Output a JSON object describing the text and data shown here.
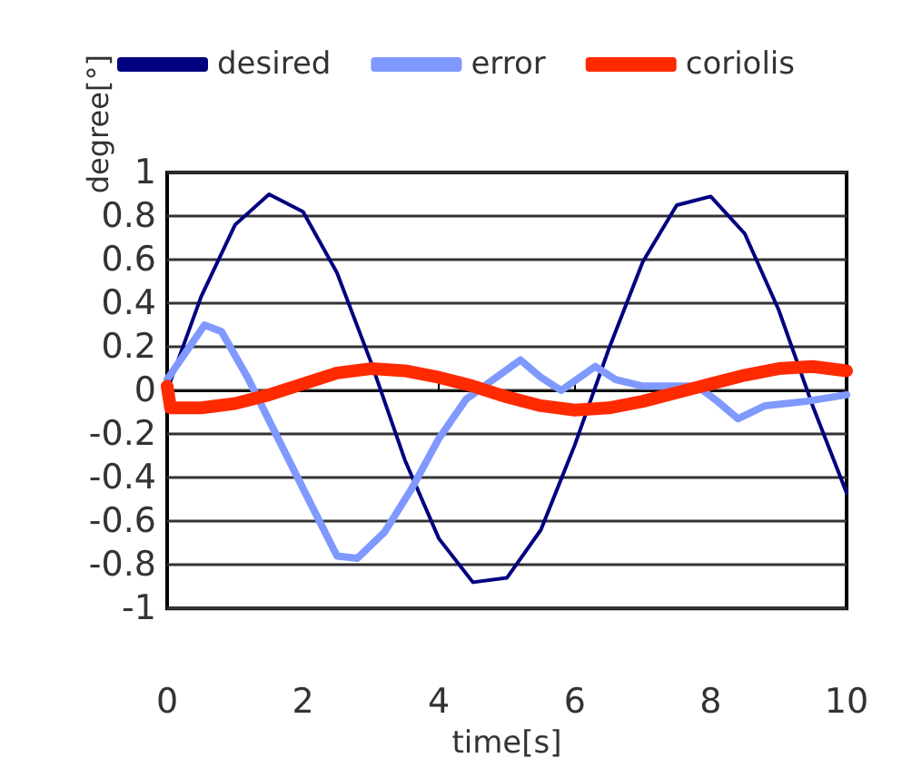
{
  "chart_data": {
    "type": "line",
    "xlabel": "time[s]",
    "ylabel": "degree[°]",
    "xlim": [
      0,
      10
    ],
    "xticks": [
      0,
      2,
      4,
      6,
      8,
      10
    ],
    "ylim": [
      -1,
      1
    ],
    "yticks": [
      -1,
      -0.8,
      -0.6,
      -0.4,
      -0.2,
      0,
      0.2,
      0.4,
      0.6,
      0.8,
      1
    ],
    "grid": "y",
    "legend": "top",
    "marker": "none",
    "line_style": "solid",
    "series": [
      {
        "name": "desired",
        "color": "#000080",
        "x": [
          0,
          0.5,
          1,
          1.5,
          2,
          2.5,
          3,
          3.5,
          4,
          4.5,
          5,
          5.5,
          6,
          6.5,
          7,
          7.5,
          8,
          8.5,
          9,
          9.5,
          10
        ],
        "values": [
          0,
          0.43,
          0.76,
          0.9,
          0.82,
          0.54,
          0.13,
          -0.32,
          -0.68,
          -0.88,
          -0.86,
          -0.64,
          -0.25,
          0.19,
          0.59,
          0.85,
          0.89,
          0.72,
          0.37,
          -0.07,
          -0.47
        ]
      },
      {
        "name": "error",
        "color": "#8099ff",
        "x": [
          0,
          0.55,
          0.8,
          1.2,
          1.6,
          2,
          2.5,
          2.8,
          3.2,
          3.6,
          4,
          4.4,
          4.8,
          5.2,
          5.5,
          5.8,
          6.3,
          6.6,
          7,
          7.8,
          8.1,
          8.4,
          8.8,
          9.4,
          10
        ],
        "values": [
          0.05,
          0.3,
          0.27,
          0.05,
          -0.2,
          -0.45,
          -0.76,
          -0.77,
          -0.65,
          -0.45,
          -0.22,
          -0.04,
          0.05,
          0.14,
          0.06,
          0,
          0.11,
          0.05,
          0.02,
          0.02,
          -0.05,
          -0.13,
          -0.07,
          -0.05,
          -0.02
        ]
      },
      {
        "name": "coriolis",
        "color": "#ff2a00",
        "x": [
          0,
          0.05,
          0.5,
          1,
          1.5,
          2,
          2.5,
          3,
          3.5,
          4,
          4.5,
          5,
          5.5,
          6,
          6.5,
          7,
          7.5,
          8,
          8.5,
          9,
          9.5,
          10
        ],
        "values": [
          0.02,
          -0.08,
          -0.08,
          -0.06,
          -0.02,
          0.03,
          0.08,
          0.1,
          0.09,
          0.06,
          0.02,
          -0.03,
          -0.07,
          -0.09,
          -0.08,
          -0.05,
          -0.01,
          0.03,
          0.07,
          0.1,
          0.11,
          0.09
        ]
      }
    ]
  }
}
